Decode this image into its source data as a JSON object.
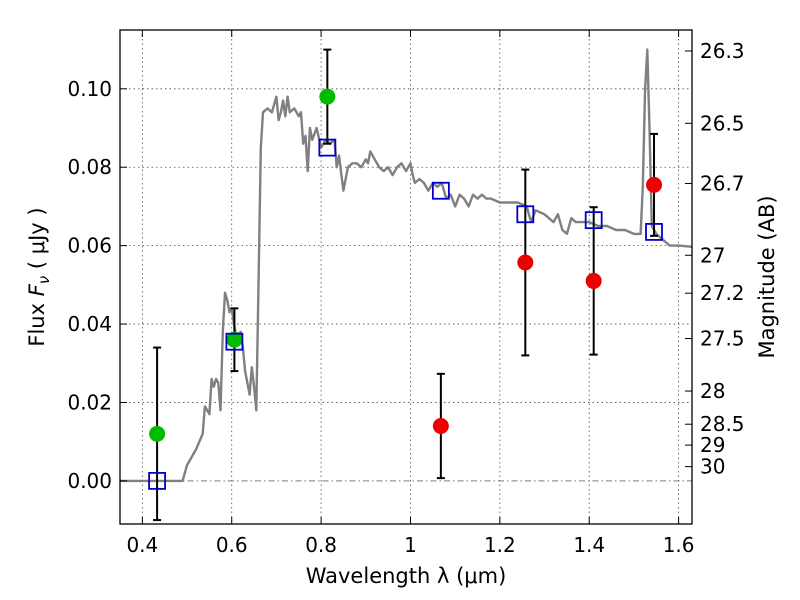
{
  "chart_data": {
    "type": "scatter",
    "xlabel": "Wavelength  λ (μm)",
    "ylabel": "Flux  F_ν  ( μJy )",
    "ylabel_parts": {
      "prefix": "Flux  ",
      "var": "F",
      "sub": "ν",
      "suffix": "  ( μJy )"
    },
    "y2label": "Magnitude (AB)",
    "xlim": [
      0.35,
      1.63
    ],
    "ylim": [
      -0.011,
      0.115
    ],
    "grid": true,
    "xticks": [
      {
        "v": 0.4,
        "label": "0.4"
      },
      {
        "v": 0.6,
        "label": "0.6"
      },
      {
        "v": 0.8,
        "label": "0.8"
      },
      {
        "v": 1.0,
        "label": "1"
      },
      {
        "v": 1.2,
        "label": "1.2"
      },
      {
        "v": 1.4,
        "label": "1.4"
      },
      {
        "v": 1.6,
        "label": "1.6"
      }
    ],
    "yticks": [
      {
        "v": 0.0,
        "label": "0.00"
      },
      {
        "v": 0.02,
        "label": "0.02"
      },
      {
        "v": 0.04,
        "label": "0.04"
      },
      {
        "v": 0.06,
        "label": "0.06"
      },
      {
        "v": 0.08,
        "label": "0.08"
      },
      {
        "v": 0.1,
        "label": "0.10"
      }
    ],
    "magticks": [
      {
        "mag": 26.3,
        "label": "26.3"
      },
      {
        "mag": 26.5,
        "label": "26.5"
      },
      {
        "mag": 26.7,
        "label": "26.7"
      },
      {
        "mag": 27.0,
        "label": "27"
      },
      {
        "mag": 27.2,
        "label": "27.2"
      },
      {
        "mag": 27.5,
        "label": "27.5"
      },
      {
        "mag": 28.0,
        "label": "28"
      },
      {
        "mag": 28.5,
        "label": "28.5"
      },
      {
        "mag": 29.0,
        "label": "29"
      },
      {
        "mag": 30.0,
        "label": "30"
      }
    ],
    "model_color": "#808080",
    "model_spectrum": [
      [
        0.35,
        0.0
      ],
      [
        0.49,
        0.0
      ],
      [
        0.5,
        0.004
      ],
      [
        0.52,
        0.008
      ],
      [
        0.535,
        0.012
      ],
      [
        0.54,
        0.019
      ],
      [
        0.55,
        0.017
      ],
      [
        0.555,
        0.026
      ],
      [
        0.56,
        0.024
      ],
      [
        0.565,
        0.026
      ],
      [
        0.57,
        0.025
      ],
      [
        0.575,
        0.018
      ],
      [
        0.58,
        0.038
      ],
      [
        0.585,
        0.048
      ],
      [
        0.59,
        0.046
      ],
      [
        0.595,
        0.043
      ],
      [
        0.6,
        0.044
      ],
      [
        0.605,
        0.04
      ],
      [
        0.61,
        0.037
      ],
      [
        0.62,
        0.038
      ],
      [
        0.625,
        0.034
      ],
      [
        0.63,
        0.028
      ],
      [
        0.635,
        0.025
      ],
      [
        0.64,
        0.022
      ],
      [
        0.645,
        0.029
      ],
      [
        0.65,
        0.024
      ],
      [
        0.655,
        0.018
      ],
      [
        0.66,
        0.05
      ],
      [
        0.665,
        0.085
      ],
      [
        0.67,
        0.094
      ],
      [
        0.68,
        0.095
      ],
      [
        0.69,
        0.094
      ],
      [
        0.7,
        0.098
      ],
      [
        0.705,
        0.092
      ],
      [
        0.71,
        0.094
      ],
      [
        0.715,
        0.097
      ],
      [
        0.72,
        0.093
      ],
      [
        0.725,
        0.098
      ],
      [
        0.73,
        0.094
      ],
      [
        0.74,
        0.095
      ],
      [
        0.75,
        0.093
      ],
      [
        0.755,
        0.094
      ],
      [
        0.76,
        0.086
      ],
      [
        0.765,
        0.088
      ],
      [
        0.77,
        0.079
      ],
      [
        0.775,
        0.09
      ],
      [
        0.78,
        0.087
      ],
      [
        0.79,
        0.09
      ],
      [
        0.8,
        0.085
      ],
      [
        0.81,
        0.087
      ],
      [
        0.82,
        0.086
      ],
      [
        0.83,
        0.087
      ],
      [
        0.835,
        0.08
      ],
      [
        0.84,
        0.083
      ],
      [
        0.85,
        0.074
      ],
      [
        0.86,
        0.08
      ],
      [
        0.87,
        0.081
      ],
      [
        0.88,
        0.081
      ],
      [
        0.89,
        0.08
      ],
      [
        0.9,
        0.082
      ],
      [
        0.905,
        0.081
      ],
      [
        0.91,
        0.084
      ],
      [
        0.92,
        0.082
      ],
      [
        0.93,
        0.08
      ],
      [
        0.94,
        0.079
      ],
      [
        0.95,
        0.08
      ],
      [
        0.96,
        0.078
      ],
      [
        0.97,
        0.08
      ],
      [
        0.98,
        0.081
      ],
      [
        0.99,
        0.079
      ],
      [
        1.0,
        0.081
      ],
      [
        1.005,
        0.078
      ],
      [
        1.01,
        0.076
      ],
      [
        1.02,
        0.077
      ],
      [
        1.03,
        0.076
      ],
      [
        1.04,
        0.074
      ],
      [
        1.05,
        0.076
      ],
      [
        1.06,
        0.075
      ],
      [
        1.07,
        0.076
      ],
      [
        1.08,
        0.072
      ],
      [
        1.09,
        0.073
      ],
      [
        1.1,
        0.07
      ],
      [
        1.11,
        0.073
      ],
      [
        1.12,
        0.072
      ],
      [
        1.13,
        0.07
      ],
      [
        1.14,
        0.073
      ],
      [
        1.15,
        0.072
      ],
      [
        1.16,
        0.073
      ],
      [
        1.17,
        0.072
      ],
      [
        1.18,
        0.072
      ],
      [
        1.2,
        0.071
      ],
      [
        1.22,
        0.071
      ],
      [
        1.24,
        0.071
      ],
      [
        1.26,
        0.07
      ],
      [
        1.27,
        0.066
      ],
      [
        1.28,
        0.069
      ],
      [
        1.3,
        0.068
      ],
      [
        1.32,
        0.066
      ],
      [
        1.33,
        0.068
      ],
      [
        1.34,
        0.064
      ],
      [
        1.35,
        0.063
      ],
      [
        1.36,
        0.067
      ],
      [
        1.37,
        0.066
      ],
      [
        1.38,
        0.066
      ],
      [
        1.4,
        0.066
      ],
      [
        1.42,
        0.065
      ],
      [
        1.44,
        0.065
      ],
      [
        1.46,
        0.064
      ],
      [
        1.48,
        0.064
      ],
      [
        1.5,
        0.063
      ],
      [
        1.515,
        0.063
      ],
      [
        1.52,
        0.075
      ],
      [
        1.525,
        0.1
      ],
      [
        1.53,
        0.11
      ],
      [
        1.535,
        0.09
      ],
      [
        1.54,
        0.065
      ],
      [
        1.55,
        0.063
      ],
      [
        1.56,
        0.062
      ],
      [
        1.58,
        0.06
      ],
      [
        1.6,
        0.06
      ],
      [
        1.63,
        0.0597
      ]
    ],
    "model_points": {
      "marker": "open-square",
      "color": "#0000cc",
      "points": [
        [
          0.433,
          0.0
        ],
        [
          0.606,
          0.0355
        ],
        [
          0.814,
          0.085
        ],
        [
          1.068,
          0.074
        ],
        [
          1.257,
          0.068
        ],
        [
          1.41,
          0.0665
        ],
        [
          1.545,
          0.0635
        ]
      ]
    },
    "measurements": [
      {
        "x": 0.433,
        "y": 0.012,
        "yerr_low": 0.022,
        "yerr_high": 0.022,
        "color": "#00bb00"
      },
      {
        "x": 0.606,
        "y": 0.036,
        "yerr_low": 0.008,
        "yerr_high": 0.008,
        "color": "#00bb00"
      },
      {
        "x": 0.814,
        "y": 0.098,
        "yerr_low": 0.012,
        "yerr_high": 0.012,
        "color": "#00bb00"
      },
      {
        "x": 1.068,
        "y": 0.014,
        "yerr_low": 0.0133,
        "yerr_high": 0.0133,
        "color": "#ee0000"
      },
      {
        "x": 1.257,
        "y": 0.0557,
        "yerr_low": 0.0237,
        "yerr_high": 0.0237,
        "color": "#ee0000"
      },
      {
        "x": 1.41,
        "y": 0.051,
        "yerr_low": 0.0188,
        "yerr_high": 0.0188,
        "color": "#ee0000"
      },
      {
        "x": 1.545,
        "y": 0.0755,
        "yerr_low": 0.013,
        "yerr_high": 0.013,
        "color": "#ee0000"
      }
    ]
  }
}
